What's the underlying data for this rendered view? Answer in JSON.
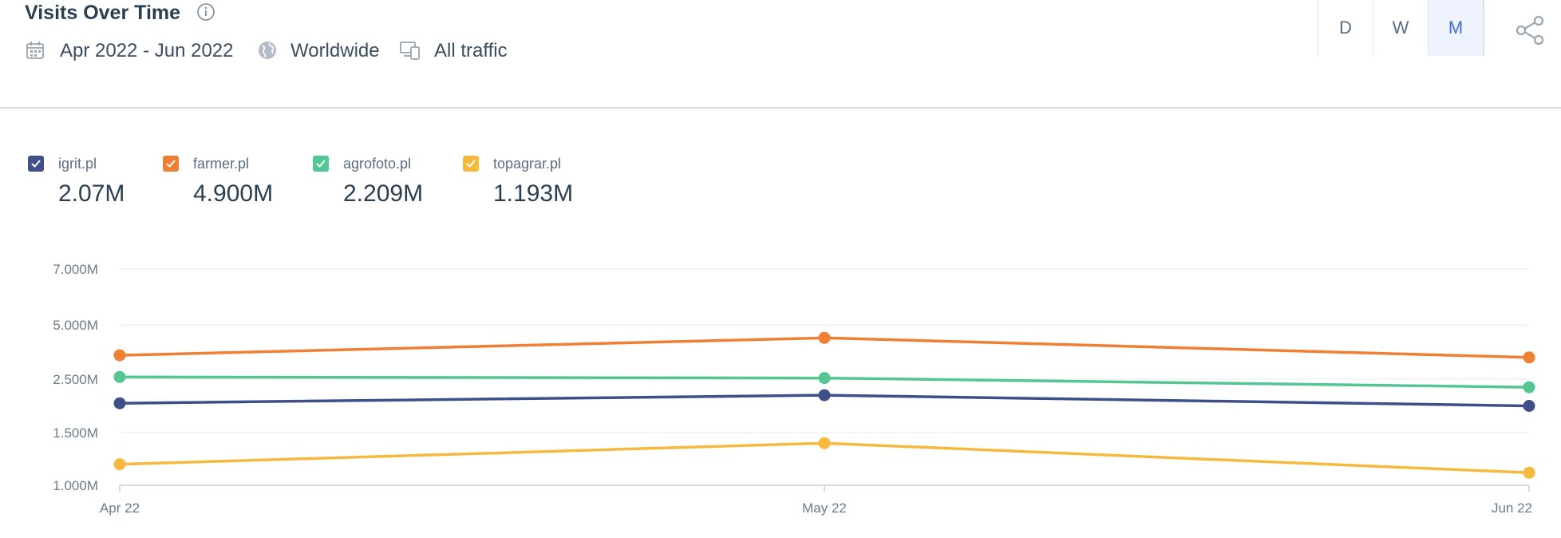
{
  "header": {
    "title": "Visits Over Time",
    "date_range": "Apr 2022 - Jun 2022",
    "region": "Worldwide",
    "traffic": "All traffic",
    "period_buttons": [
      "D",
      "W",
      "M"
    ],
    "active_period": "M"
  },
  "legend": [
    {
      "name": "igrit.pl",
      "value": "2.07M",
      "color": "#3e4f8a"
    },
    {
      "name": "farmer.pl",
      "value": "4.900M",
      "color": "#f07f34"
    },
    {
      "name": "agrofoto.pl",
      "value": "2.209M",
      "color": "#54c694"
    },
    {
      "name": "topagrar.pl",
      "value": "1.193M",
      "color": "#f7b83e"
    }
  ],
  "chart_data": {
    "type": "line",
    "x": [
      "Apr 22",
      "May 22",
      "Jun 22"
    ],
    "y_ticks": [
      "1.000M",
      "1.500M",
      "2.500M",
      "5.000M",
      "7.000M"
    ],
    "grid": true,
    "series": [
      {
        "name": "igrit.pl",
        "color": "#3e4f8a",
        "values": [
          2.05,
          2.2,
          2.0
        ]
      },
      {
        "name": "farmer.pl",
        "color": "#f07f34",
        "values": [
          3.6,
          4.4,
          3.5
        ]
      },
      {
        "name": "agrofoto.pl",
        "color": "#54c694",
        "values": [
          2.6,
          2.55,
          2.35
        ]
      },
      {
        "name": "topagrar.pl",
        "color": "#f7b83e",
        "values": [
          1.2,
          1.4,
          1.12
        ]
      }
    ]
  }
}
